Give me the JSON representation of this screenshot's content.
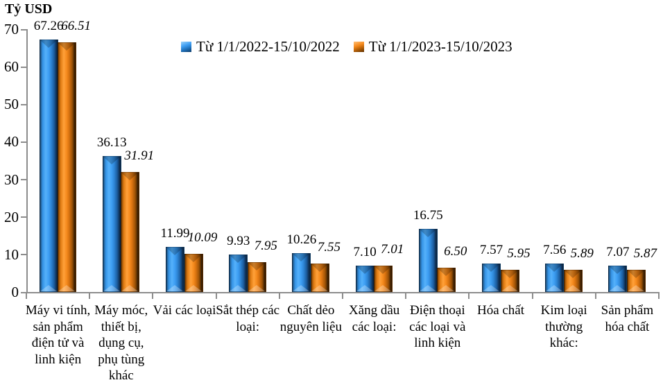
{
  "title": "Tỷ USD",
  "legend": [
    {
      "label": "Từ 1/1/2022-15/10/2022",
      "color": "#3e9ff4"
    },
    {
      "label": "Từ 1/1/2023-15/10/2023",
      "color": "#f68b1e"
    }
  ],
  "chart_data": {
    "type": "bar",
    "title": "",
    "ylabel": "Tỷ USD",
    "xlabel": "",
    "ylim": [
      0,
      70
    ],
    "yticks": [
      0,
      10,
      20,
      30,
      40,
      50,
      60,
      70
    ],
    "grid": false,
    "legend_position": "top",
    "value_labels": true,
    "categories": [
      "Máy vi tính, sản phẩm điện tử và linh kiện",
      "Máy móc, thiết bị, dụng cụ, phụ tùng khác",
      "Vải các loại",
      "Sắt thép các loại:",
      "Chất dẻo nguyên liệu",
      "Xăng dầu các loại:",
      "Điện thoại các loại và linh kiện",
      "Hóa chất",
      "Kim loại thường khác:",
      "Sản phẩm hóa chất"
    ],
    "series": [
      {
        "name": "Từ 1/1/2022-15/10/2022",
        "color": "#3e9ff4",
        "values": [
          67.26,
          36.13,
          11.99,
          9.93,
          10.26,
          7.1,
          16.75,
          7.57,
          7.56,
          7.07
        ]
      },
      {
        "name": "Từ 1/1/2023-15/10/2023",
        "color": "#f68b1e",
        "values": [
          66.51,
          31.91,
          10.09,
          7.95,
          7.55,
          7.01,
          6.5,
          5.95,
          5.89,
          5.87
        ]
      }
    ]
  }
}
